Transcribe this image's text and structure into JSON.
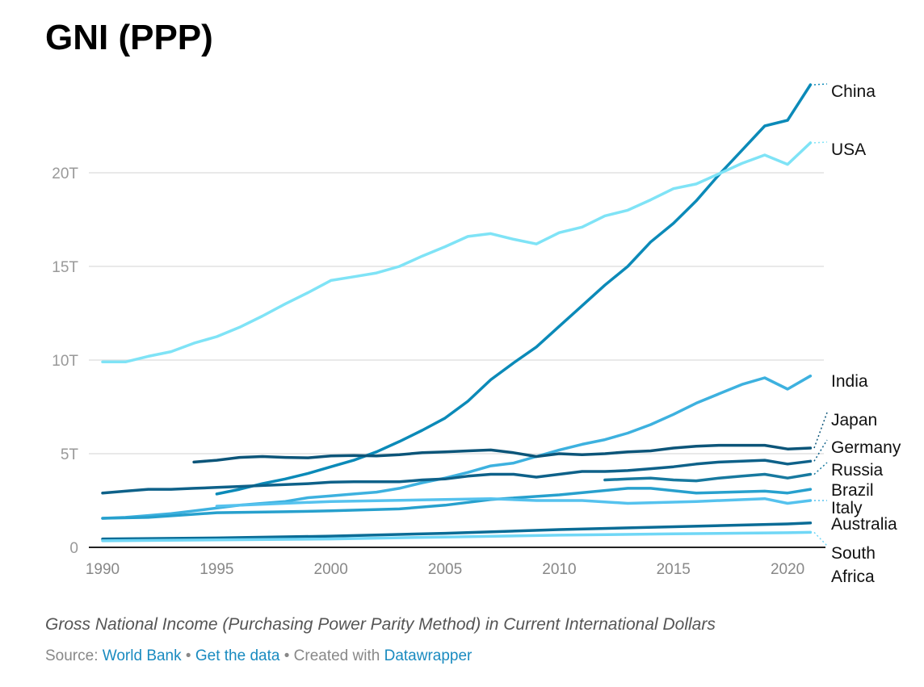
{
  "title": "GNI (PPP)",
  "caption": "Gross National Income (Purchasing Power Parity Method) in Current International Dollars",
  "footer": {
    "source_label": "Source:",
    "source_link": "World Bank",
    "sep": "•",
    "data_link": "Get the data",
    "created": "Created with",
    "dw_link": "Datawrapper"
  },
  "chart_data": {
    "type": "line",
    "title": "GNI (PPP)",
    "xlabel": "",
    "ylabel": "",
    "xlim": [
      1990,
      2021
    ],
    "ylim": [
      0,
      25
    ],
    "x_ticks": [
      1990,
      1995,
      2000,
      2005,
      2010,
      2015,
      2020
    ],
    "x_tick_labels": [
      "1990",
      "1995",
      "2000",
      "2005",
      "2010",
      "2015",
      "2020"
    ],
    "y_ticks": [
      0,
      5,
      10,
      15,
      20
    ],
    "y_tick_labels": [
      "0",
      "5T",
      "10T",
      "15T",
      "20T"
    ],
    "grid": true,
    "legend": "direct labels right",
    "series": [
      {
        "name": "China",
        "color": "#0b8ab8",
        "x": [
          1995,
          1996,
          1997,
          1998,
          1999,
          2000,
          2001,
          2002,
          2003,
          2004,
          2005,
          2006,
          2007,
          2008,
          2009,
          2010,
          2011,
          2012,
          2013,
          2014,
          2015,
          2016,
          2017,
          2018,
          2019,
          2020,
          2021
        ],
        "values": [
          2.85,
          3.1,
          3.4,
          3.65,
          3.95,
          4.3,
          4.65,
          5.1,
          5.65,
          6.25,
          6.9,
          7.8,
          8.95,
          9.85,
          10.7,
          11.8,
          12.9,
          14.0,
          15.0,
          16.3,
          17.3,
          18.5,
          19.9,
          21.2,
          22.5,
          22.8,
          24.7
        ]
      },
      {
        "name": "USA",
        "color": "#7fe3f6",
        "x": [
          1990,
          1991,
          1992,
          1993,
          1994,
          1995,
          1996,
          1997,
          1998,
          1999,
          2000,
          2001,
          2002,
          2003,
          2004,
          2005,
          2006,
          2007,
          2008,
          2009,
          2010,
          2011,
          2012,
          2013,
          2014,
          2015,
          2016,
          2017,
          2018,
          2019,
          2020,
          2021
        ],
        "values": [
          9.9,
          9.9,
          10.2,
          10.45,
          10.9,
          11.25,
          11.75,
          12.35,
          13.0,
          13.6,
          14.25,
          14.45,
          14.65,
          15.0,
          15.55,
          16.05,
          16.6,
          16.75,
          16.45,
          16.2,
          16.8,
          17.1,
          17.7,
          18.0,
          18.55,
          19.15,
          19.4,
          19.95,
          20.5,
          20.95,
          20.45,
          21.6
        ]
      },
      {
        "name": "India",
        "color": "#3db1df",
        "x": [
          1990,
          1991,
          1992,
          1993,
          1994,
          1995,
          1996,
          1997,
          1998,
          1999,
          2000,
          2001,
          2002,
          2003,
          2004,
          2005,
          2006,
          2007,
          2008,
          2009,
          2010,
          2011,
          2012,
          2013,
          2014,
          2015,
          2016,
          2017,
          2018,
          2019,
          2020,
          2021
        ],
        "values": [
          1.55,
          1.6,
          1.7,
          1.8,
          1.95,
          2.1,
          2.25,
          2.35,
          2.45,
          2.65,
          2.75,
          2.85,
          2.95,
          3.15,
          3.45,
          3.7,
          4.0,
          4.35,
          4.5,
          4.85,
          5.2,
          5.5,
          5.75,
          6.1,
          6.55,
          7.1,
          7.7,
          8.2,
          8.7,
          9.05,
          8.45,
          9.15
        ]
      },
      {
        "name": "Japan",
        "color": "#0c5579",
        "x": [
          1994,
          1995,
          1996,
          1997,
          1998,
          1999,
          2000,
          2001,
          2002,
          2003,
          2004,
          2005,
          2006,
          2007,
          2008,
          2009,
          2010,
          2011,
          2012,
          2013,
          2014,
          2015,
          2016,
          2017,
          2018,
          2019,
          2020,
          2021
        ],
        "values": [
          4.55,
          4.65,
          4.8,
          4.85,
          4.8,
          4.78,
          4.88,
          4.9,
          4.88,
          4.95,
          5.05,
          5.1,
          5.15,
          5.2,
          5.05,
          4.85,
          5.0,
          4.95,
          5.0,
          5.1,
          5.15,
          5.3,
          5.4,
          5.45,
          5.45,
          5.45,
          5.25,
          5.3
        ]
      },
      {
        "name": "Germany",
        "color": "#0e6189",
        "x": [
          1990,
          1991,
          1992,
          1993,
          1994,
          1995,
          1996,
          1997,
          1998,
          1999,
          2000,
          2001,
          2002,
          2003,
          2004,
          2005,
          2006,
          2007,
          2008,
          2009,
          2010,
          2011,
          2012,
          2013,
          2014,
          2015,
          2016,
          2017,
          2018,
          2019,
          2020,
          2021
        ],
        "values": [
          2.9,
          3.0,
          3.1,
          3.1,
          3.15,
          3.2,
          3.25,
          3.3,
          3.35,
          3.4,
          3.48,
          3.5,
          3.5,
          3.5,
          3.6,
          3.65,
          3.8,
          3.9,
          3.9,
          3.75,
          3.9,
          4.05,
          4.05,
          4.1,
          4.2,
          4.3,
          4.45,
          4.55,
          4.6,
          4.65,
          4.45,
          4.6
        ]
      },
      {
        "name": "Russia",
        "color": "#17799f",
        "x": [
          2012,
          2013,
          2014,
          2015,
          2016,
          2017,
          2018,
          2019,
          2020,
          2021
        ],
        "values": [
          3.6,
          3.65,
          3.7,
          3.6,
          3.55,
          3.7,
          3.8,
          3.9,
          3.7,
          3.9
        ]
      },
      {
        "name": "Brazil",
        "color": "#27a0cd",
        "x": [
          1990,
          1992,
          1995,
          1998,
          2000,
          2003,
          2005,
          2007,
          2010,
          2013,
          2014,
          2016,
          2019,
          2020,
          2021
        ],
        "values": [
          1.55,
          1.6,
          1.85,
          1.9,
          1.95,
          2.05,
          2.25,
          2.55,
          2.8,
          3.15,
          3.15,
          2.9,
          3.0,
          2.9,
          3.1
        ]
      },
      {
        "name": "Italy",
        "color": "#55c2ee",
        "x": [
          1995,
          1997,
          2000,
          2005,
          2007,
          2009,
          2011,
          2013,
          2016,
          2019,
          2020,
          2021
        ],
        "values": [
          2.2,
          2.3,
          2.45,
          2.55,
          2.6,
          2.5,
          2.5,
          2.35,
          2.45,
          2.6,
          2.35,
          2.5
        ]
      },
      {
        "name": "Australia",
        "color": "#0a6c96",
        "x": [
          1990,
          1995,
          2000,
          2005,
          2010,
          2015,
          2020,
          2021
        ],
        "values": [
          0.45,
          0.5,
          0.6,
          0.75,
          0.95,
          1.1,
          1.25,
          1.3
        ]
      },
      {
        "name": "South Africa",
        "color": "#70d7f6",
        "x": [
          1990,
          1995,
          2000,
          2005,
          2010,
          2015,
          2020,
          2021
        ],
        "values": [
          0.35,
          0.4,
          0.45,
          0.55,
          0.65,
          0.72,
          0.78,
          0.8
        ]
      }
    ]
  }
}
